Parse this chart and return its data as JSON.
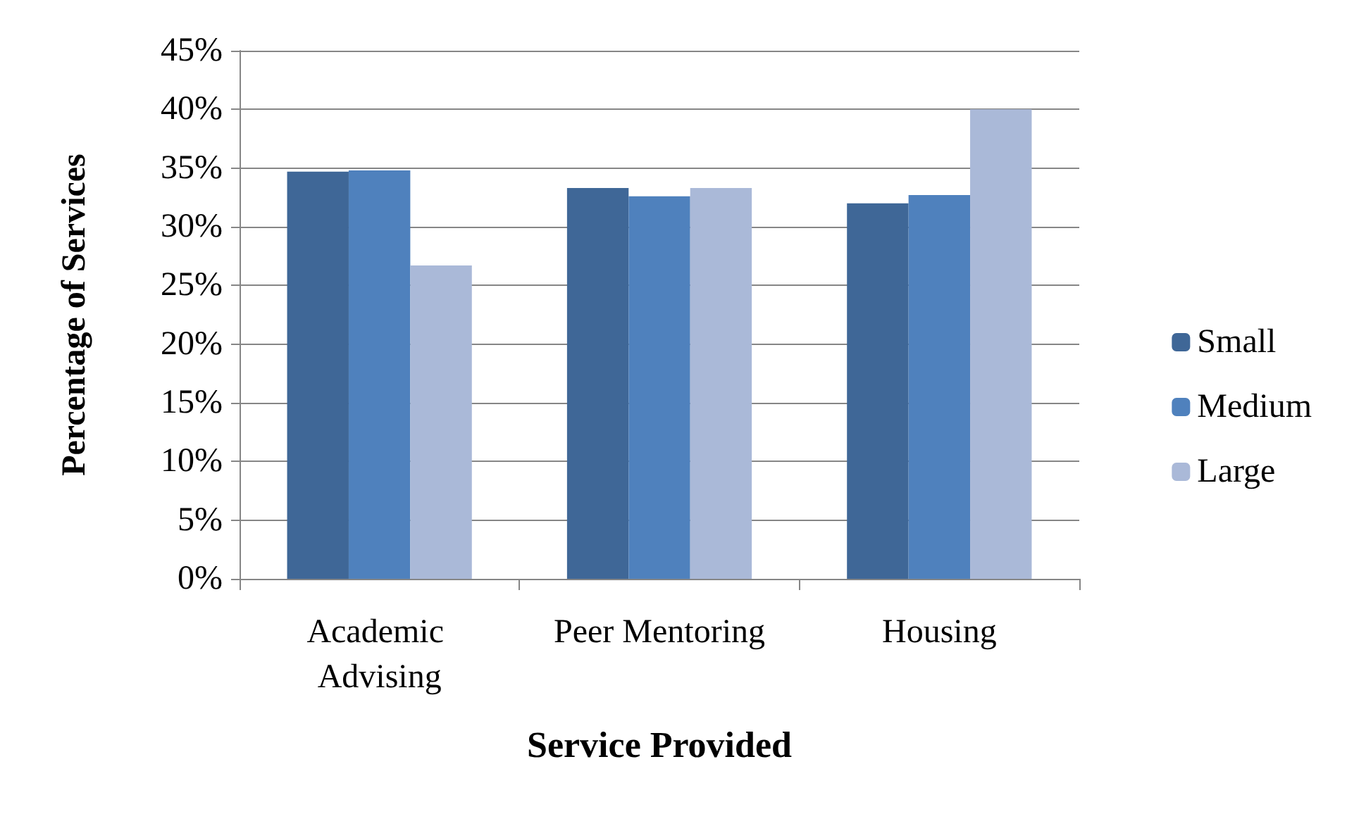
{
  "chart_data": {
    "type": "bar",
    "xlabel": "Service Provided",
    "ylabel": "Percentage of Services",
    "categories": [
      "Academic Advising",
      "Peer Mentoring",
      "Housing"
    ],
    "series": [
      {
        "name": "Small",
        "color": "#3f6797",
        "values": [
          34.7,
          33.3,
          32.0
        ]
      },
      {
        "name": "Medium",
        "color": "#4f81bd",
        "values": [
          34.8,
          32.6,
          32.7
        ]
      },
      {
        "name": "Large",
        "color": "#aab9d8",
        "values": [
          26.7,
          33.3,
          40.0
        ]
      }
    ],
    "ylim": [
      0,
      45
    ],
    "yticks": [
      {
        "value": 0,
        "label": "0%"
      },
      {
        "value": 5,
        "label": "5%"
      },
      {
        "value": 10,
        "label": "10%"
      },
      {
        "value": 15,
        "label": "15%"
      },
      {
        "value": 20,
        "label": "20%"
      },
      {
        "value": 25,
        "label": "25%"
      },
      {
        "value": 30,
        "label": "30%"
      },
      {
        "value": 35,
        "label": "35%"
      },
      {
        "value": 40,
        "label": "40%"
      },
      {
        "value": 45,
        "label": "45%"
      }
    ],
    "grid": "y",
    "legend": "right"
  }
}
